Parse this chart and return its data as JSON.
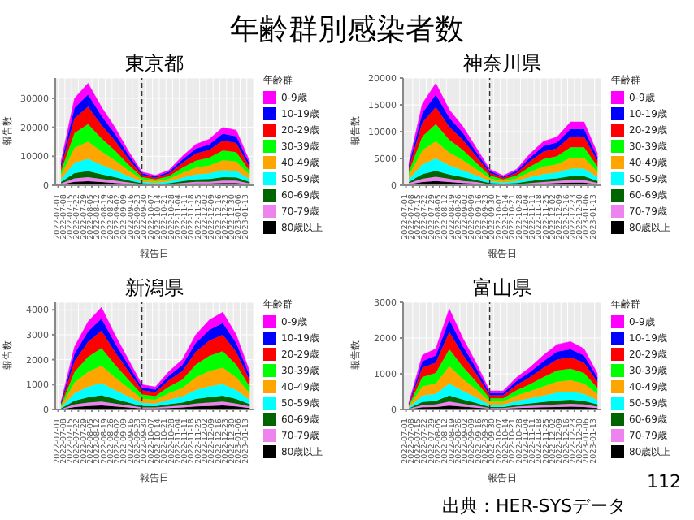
{
  "chart_data": [
    {
      "type": "area",
      "title": "東京都",
      "xlabel": "報告日",
      "ylabel": "報告数",
      "legend_title": "年齢群",
      "stacked": true,
      "grid": true,
      "legend": "right",
      "annotations": [
        "年齢群別感染者数"
      ],
      "x": [
        "2022-07-04",
        "2022-07-18",
        "2022-08-01",
        "2022-08-15",
        "2022-08-29",
        "2022-09-12",
        "2022-09-26",
        "2022-10-10",
        "2022-10-24",
        "2022-11-07",
        "2022-11-21",
        "2022-12-05",
        "2022-12-19",
        "2023-01-02",
        "2023-01-16"
      ],
      "xlim": [
        "2022-06-28",
        "2023-01-20"
      ],
      "xticks": [
        "2022-07-01",
        "2022-07-08",
        "2022-07-15",
        "2022-07-22",
        "2022-07-29",
        "2022-08-05",
        "2022-08-12",
        "2022-08-19",
        "2022-08-26",
        "2022-09-02",
        "2022-09-09",
        "2022-09-16",
        "2022-09-23",
        "2022-09-30",
        "2022-10-07",
        "2022-10-14",
        "2022-10-21",
        "2022-10-28",
        "2022-11-04",
        "2022-11-11",
        "2022-11-18",
        "2022-11-25",
        "2022-12-02",
        "2022-12-09",
        "2022-12-16",
        "2022-12-23",
        "2022-12-30",
        "2023-01-06",
        "2023-01-13"
      ],
      "ylim": [
        0,
        37000
      ],
      "yticks": [
        0,
        10000,
        20000,
        30000
      ],
      "ref_lines": [
        {
          "axis": "x",
          "value": "2022-09-26",
          "line_style": "dashed",
          "color": "#333333"
        }
      ],
      "series": [
        {
          "name": "80歳以上",
          "color": "#000000",
          "values": [
            300,
            1200,
            1400,
            1100,
            800,
            500,
            200,
            100,
            200,
            400,
            600,
            600,
            800,
            800,
            300
          ]
        },
        {
          "name": "70-79歳",
          "color": "#ee82ee",
          "values": [
            300,
            1200,
            1400,
            1100,
            800,
            500,
            200,
            100,
            200,
            400,
            600,
            600,
            800,
            800,
            300
          ]
        },
        {
          "name": "60-69歳",
          "color": "#006400",
          "values": [
            500,
            1800,
            2100,
            1600,
            1200,
            700,
            300,
            200,
            300,
            600,
            800,
            1000,
            1200,
            1100,
            500
          ]
        },
        {
          "name": "50-59歳",
          "color": "#00ffff",
          "values": [
            1000,
            3600,
            4200,
            3200,
            2400,
            1400,
            500,
            400,
            600,
            1200,
            1700,
            1900,
            2400,
            2300,
            1000
          ]
        },
        {
          "name": "40-49歳",
          "color": "#ffa500",
          "values": [
            1400,
            5100,
            6000,
            4600,
            3400,
            2000,
            800,
            600,
            900,
            1700,
            2400,
            2700,
            3400,
            3200,
            1400
          ]
        },
        {
          "name": "30-39歳",
          "color": "#00ff00",
          "values": [
            1400,
            5100,
            6000,
            4600,
            3400,
            2000,
            800,
            600,
            900,
            1700,
            2400,
            2700,
            3400,
            3200,
            1400
          ]
        },
        {
          "name": "20-29歳",
          "color": "#ff0000",
          "values": [
            1400,
            5100,
            6000,
            4600,
            3400,
            2000,
            800,
            600,
            900,
            1700,
            2400,
            2700,
            3400,
            3200,
            1400
          ]
        },
        {
          "name": "10-19歳",
          "color": "#0000ff",
          "values": [
            1000,
            3600,
            4200,
            3200,
            2400,
            1400,
            500,
            400,
            600,
            1200,
            1700,
            1900,
            2400,
            2300,
            1000
          ]
        },
        {
          "name": "0-9歳",
          "color": "#ff00ff",
          "values": [
            900,
            3300,
            3900,
            3000,
            2200,
            1300,
            500,
            400,
            600,
            1100,
            1500,
            1800,
            2200,
            2100,
            900
          ]
        }
      ]
    },
    {
      "type": "area",
      "title": "神奈川県",
      "xlabel": "報告日",
      "ylabel": "報告数",
      "legend_title": "年齢群",
      "stacked": true,
      "grid": true,
      "legend": "right",
      "x": [
        "2022-07-04",
        "2022-07-18",
        "2022-08-01",
        "2022-08-15",
        "2022-08-29",
        "2022-09-12",
        "2022-09-26",
        "2022-10-10",
        "2022-10-24",
        "2022-11-07",
        "2022-11-21",
        "2022-12-05",
        "2022-12-19",
        "2023-01-02",
        "2023-01-16"
      ],
      "xlim": [
        "2022-06-28",
        "2023-01-20"
      ],
      "xticks": [
        "2022-07-01",
        "2022-07-08",
        "2022-07-15",
        "2022-07-22",
        "2022-07-29",
        "2022-08-05",
        "2022-08-12",
        "2022-08-19",
        "2022-08-26",
        "2022-09-02",
        "2022-09-09",
        "2022-09-16",
        "2022-09-23",
        "2022-09-30",
        "2022-10-07",
        "2022-10-14",
        "2022-10-21",
        "2022-10-28",
        "2022-11-04",
        "2022-11-11",
        "2022-11-18",
        "2022-11-25",
        "2022-12-02",
        "2022-12-09",
        "2022-12-16",
        "2022-12-23",
        "2022-12-30",
        "2023-01-06",
        "2023-01-13"
      ],
      "ylim": [
        0,
        20000
      ],
      "yticks": [
        0,
        5000,
        10000,
        15000,
        20000
      ],
      "ref_lines": [
        {
          "axis": "x",
          "value": "2022-09-26",
          "line_style": "dashed",
          "color": "#333333"
        }
      ],
      "series": [
        {
          "name": "80歳以上",
          "color": "#000000",
          "values": [
            200,
            600,
            800,
            600,
            400,
            300,
            100,
            100,
            100,
            200,
            300,
            400,
            500,
            500,
            200
          ]
        },
        {
          "name": "70-79歳",
          "color": "#ee82ee",
          "values": [
            200,
            600,
            800,
            600,
            400,
            300,
            100,
            100,
            100,
            200,
            300,
            400,
            500,
            500,
            200
          ]
        },
        {
          "name": "60-69歳",
          "color": "#006400",
          "values": [
            200,
            900,
            1100,
            800,
            700,
            400,
            200,
            100,
            200,
            400,
            500,
            500,
            700,
            700,
            400
          ]
        },
        {
          "name": "50-59歳",
          "color": "#00ffff",
          "values": [
            500,
            1800,
            2300,
            1700,
            1300,
            800,
            400,
            200,
            400,
            700,
            1000,
            1100,
            1400,
            1400,
            700
          ]
        },
        {
          "name": "40-49歳",
          "color": "#ffa500",
          "values": [
            700,
            2600,
            3200,
            2400,
            1900,
            1200,
            500,
            300,
            500,
            1000,
            1400,
            1500,
            2000,
            2000,
            1000
          ]
        },
        {
          "name": "30-39歳",
          "color": "#00ff00",
          "values": [
            700,
            2600,
            3200,
            2400,
            1900,
            1200,
            500,
            300,
            500,
            1000,
            1400,
            1500,
            2000,
            2000,
            1000
          ]
        },
        {
          "name": "20-29歳",
          "color": "#ff0000",
          "values": [
            700,
            2600,
            3200,
            2400,
            1900,
            1200,
            500,
            300,
            500,
            1000,
            1400,
            1500,
            2000,
            2000,
            1000
          ]
        },
        {
          "name": "10-19歳",
          "color": "#0000ff",
          "values": [
            500,
            1800,
            2300,
            1700,
            1300,
            800,
            400,
            200,
            400,
            700,
            1000,
            1100,
            1400,
            1400,
            700
          ]
        },
        {
          "name": "0-9歳",
          "color": "#ff00ff",
          "values": [
            400,
            1700,
            2100,
            1500,
            1200,
            800,
            300,
            200,
            300,
            700,
            900,
            1000,
            1300,
            1300,
            700
          ]
        }
      ]
    },
    {
      "type": "area",
      "title": "新潟県",
      "xlabel": "報告日",
      "ylabel": "報告数",
      "legend_title": "年齢群",
      "stacked": true,
      "grid": true,
      "legend": "right",
      "x": [
        "2022-07-04",
        "2022-07-18",
        "2022-08-01",
        "2022-08-15",
        "2022-08-29",
        "2022-09-12",
        "2022-09-26",
        "2022-10-10",
        "2022-10-24",
        "2022-11-07",
        "2022-11-21",
        "2022-12-05",
        "2022-12-19",
        "2023-01-02",
        "2023-01-16"
      ],
      "xlim": [
        "2022-06-28",
        "2023-01-20"
      ],
      "xticks": [
        "2022-07-01",
        "2022-07-08",
        "2022-07-15",
        "2022-07-22",
        "2022-07-29",
        "2022-08-05",
        "2022-08-12",
        "2022-08-19",
        "2022-08-26",
        "2022-09-02",
        "2022-09-09",
        "2022-09-16",
        "2022-09-23",
        "2022-09-30",
        "2022-10-07",
        "2022-10-14",
        "2022-10-21",
        "2022-10-28",
        "2022-11-04",
        "2022-11-11",
        "2022-11-18",
        "2022-11-25",
        "2022-12-02",
        "2022-12-09",
        "2022-12-16",
        "2022-12-23",
        "2022-12-30",
        "2023-01-06",
        "2023-01-13"
      ],
      "ylim": [
        0,
        4300
      ],
      "yticks": [
        0,
        1000,
        2000,
        3000,
        4000
      ],
      "ref_lines": [
        {
          "axis": "x",
          "value": "2022-09-26",
          "line_style": "dashed",
          "color": "#333333"
        }
      ],
      "series": [
        {
          "name": "80歳以上",
          "color": "#000000",
          "values": [
            10,
            100,
            140,
            160,
            120,
            80,
            40,
            40,
            60,
            80,
            120,
            140,
            160,
            120,
            60
          ]
        },
        {
          "name": "70-79歳",
          "color": "#ee82ee",
          "values": [
            10,
            100,
            140,
            160,
            120,
            80,
            40,
            40,
            60,
            80,
            120,
            140,
            160,
            120,
            60
          ]
        },
        {
          "name": "60-69歳",
          "color": "#006400",
          "values": [
            20,
            150,
            210,
            250,
            180,
            120,
            60,
            50,
            90,
            120,
            180,
            220,
            230,
            180,
            90
          ]
        },
        {
          "name": "50-59歳",
          "color": "#00ffff",
          "values": [
            40,
            300,
            420,
            490,
            360,
            240,
            120,
            110,
            180,
            240,
            360,
            430,
            470,
            360,
            180
          ]
        },
        {
          "name": "40-49歳",
          "color": "#ffa500",
          "values": [
            50,
            430,
            600,
            700,
            510,
            340,
            170,
            150,
            260,
            340,
            510,
            610,
            660,
            510,
            260
          ]
        },
        {
          "name": "30-39歳",
          "color": "#00ff00",
          "values": [
            50,
            430,
            600,
            700,
            510,
            340,
            170,
            150,
            260,
            340,
            510,
            610,
            660,
            510,
            260
          ]
        },
        {
          "name": "20-29歳",
          "color": "#ff0000",
          "values": [
            50,
            430,
            600,
            700,
            510,
            340,
            170,
            150,
            260,
            340,
            510,
            610,
            660,
            510,
            260
          ]
        },
        {
          "name": "10-19歳",
          "color": "#0000ff",
          "values": [
            40,
            300,
            420,
            490,
            360,
            240,
            120,
            110,
            180,
            240,
            360,
            430,
            470,
            360,
            180
          ]
        },
        {
          "name": "0-9歳",
          "color": "#ff00ff",
          "values": [
            30,
            280,
            390,
            450,
            330,
            220,
            110,
            100,
            170,
            220,
            330,
            400,
            430,
            330,
            170
          ]
        }
      ]
    },
    {
      "type": "area",
      "title": "富山県",
      "xlabel": "報告日",
      "ylabel": "報告数",
      "legend_title": "年齢群",
      "stacked": true,
      "grid": true,
      "legend": "right",
      "annotations": [
        "112",
        "出典：HER-SYSデータ"
      ],
      "x": [
        "2022-07-04",
        "2022-07-18",
        "2022-08-01",
        "2022-08-15",
        "2022-08-29",
        "2022-09-12",
        "2022-09-26",
        "2022-10-10",
        "2022-10-24",
        "2022-11-07",
        "2022-11-21",
        "2022-12-05",
        "2022-12-19",
        "2023-01-02",
        "2023-01-16"
      ],
      "xlim": [
        "2022-06-28",
        "2023-01-20"
      ],
      "xticks": [
        "2022-07-01",
        "2022-07-08",
        "2022-07-15",
        "2022-07-22",
        "2022-07-29",
        "2022-08-05",
        "2022-08-12",
        "2022-08-19",
        "2022-08-26",
        "2022-09-02",
        "2022-09-09",
        "2022-09-16",
        "2022-09-23",
        "2022-09-30",
        "2022-10-07",
        "2022-10-14",
        "2022-10-21",
        "2022-10-28",
        "2022-11-04",
        "2022-11-11",
        "2022-11-18",
        "2022-11-25",
        "2022-12-02",
        "2022-12-09",
        "2022-12-16",
        "2022-12-23",
        "2022-12-30",
        "2023-01-06",
        "2023-01-13"
      ],
      "ylim": [
        0,
        3000
      ],
      "yticks": [
        0,
        1000,
        2000,
        3000
      ],
      "ref_lines": [
        {
          "axis": "x",
          "value": "2022-09-26",
          "line_style": "dashed",
          "color": "#333333"
        }
      ],
      "series": [
        {
          "name": "80歳以上",
          "color": "#000000",
          "values": [
            10,
            60,
            70,
            110,
            80,
            50,
            20,
            20,
            40,
            50,
            60,
            70,
            80,
            70,
            40
          ]
        },
        {
          "name": "70-79歳",
          "color": "#ee82ee",
          "values": [
            10,
            60,
            70,
            110,
            80,
            50,
            20,
            20,
            40,
            50,
            60,
            70,
            80,
            70,
            40
          ]
        },
        {
          "name": "60-69歳",
          "color": "#006400",
          "values": [
            10,
            90,
            100,
            170,
            120,
            80,
            30,
            30,
            50,
            70,
            90,
            110,
            110,
            100,
            60
          ]
        },
        {
          "name": "50-59歳",
          "color": "#00ffff",
          "values": [
            20,
            180,
            200,
            340,
            240,
            160,
            60,
            60,
            110,
            140,
            180,
            220,
            230,
            200,
            120
          ]
        },
        {
          "name": "40-49歳",
          "color": "#ffa500",
          "values": [
            30,
            260,
            290,
            480,
            340,
            220,
            90,
            90,
            150,
            200,
            260,
            310,
            320,
            290,
            170
          ]
        },
        {
          "name": "30-39歳",
          "color": "#00ff00",
          "values": [
            30,
            260,
            290,
            480,
            340,
            220,
            90,
            90,
            150,
            200,
            260,
            310,
            320,
            290,
            170
          ]
        },
        {
          "name": "20-29歳",
          "color": "#ff0000",
          "values": [
            30,
            260,
            290,
            480,
            340,
            220,
            90,
            90,
            150,
            200,
            260,
            310,
            320,
            290,
            170
          ]
        },
        {
          "name": "10-19歳",
          "color": "#0000ff",
          "values": [
            20,
            180,
            200,
            340,
            240,
            160,
            60,
            60,
            110,
            140,
            180,
            220,
            230,
            200,
            120
          ]
        },
        {
          "name": "0-9歳",
          "color": "#ff00ff",
          "values": [
            20,
            170,
            190,
            310,
            220,
            140,
            60,
            60,
            100,
            130,
            170,
            200,
            210,
            190,
            110
          ]
        }
      ]
    }
  ]
}
